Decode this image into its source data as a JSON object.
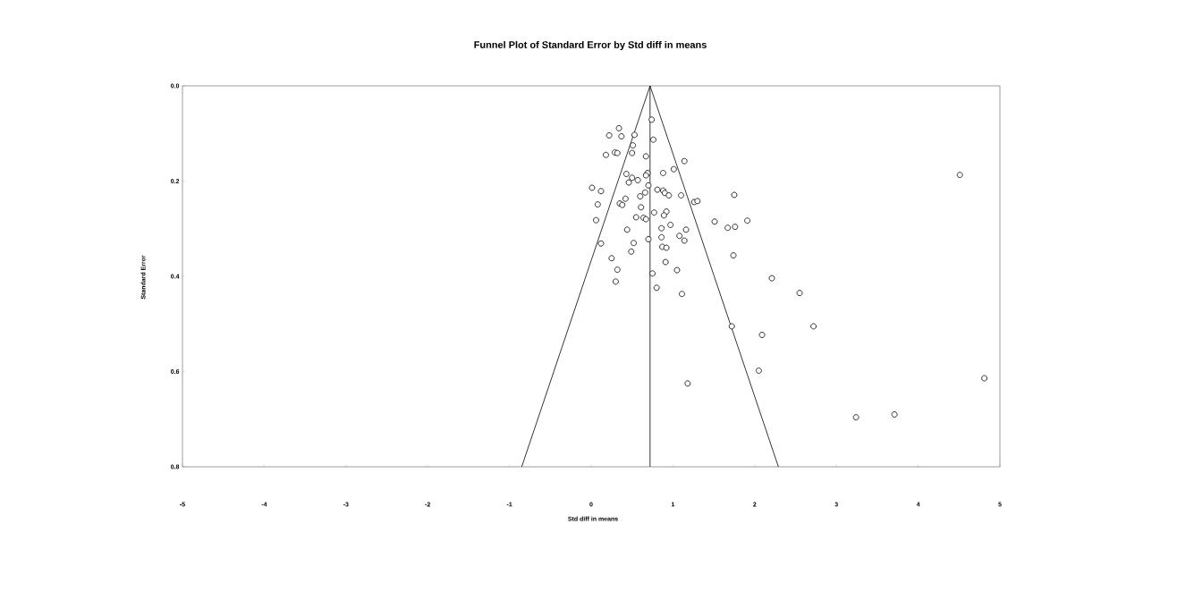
{
  "chart_data": {
    "type": "scatter",
    "title": "Funnel Plot of Standard Error by Std diff in means",
    "xlabel": "Std diff in means",
    "ylabel": "Standard Error",
    "xlim": [
      -5,
      5
    ],
    "xticks": [
      -5,
      -4,
      -3,
      -2,
      -1,
      0,
      1,
      2,
      3,
      4,
      5
    ],
    "ylim": [
      0.8,
      0
    ],
    "yticks": [
      {
        "value": 0,
        "label": "0.0"
      },
      0.2,
      0.4,
      0.6,
      0.8
    ],
    "marker": "circle",
    "series": [
      {
        "color": "#000000",
        "x": [
          0.74,
          0.34,
          0.22,
          0.37,
          0.53,
          0.76,
          0.51,
          0.29,
          0.32,
          0.18,
          0.5,
          0.67,
          1.14,
          1.01,
          0.88,
          0.43,
          0.69,
          0.67,
          0.5,
          0.57,
          0.46,
          0.7,
          0.01,
          0.12,
          0.81,
          0.88,
          0.9,
          0.95,
          0.66,
          0.6,
          1.1,
          1.75,
          0.42,
          0.35,
          0.38,
          0.08,
          1.26,
          1.3,
          0.61,
          0.77,
          0.92,
          0.89,
          0.06,
          0.55,
          0.64,
          0.67,
          1.51,
          1.91,
          1.67,
          1.76,
          0.97,
          0.44,
          0.86,
          1.16,
          0.12,
          0.52,
          0.7,
          0.86,
          1.08,
          1.14,
          0.49,
          0.87,
          0.92,
          1.74,
          0.25,
          0.91,
          0.32,
          1.05,
          0.75,
          0.3,
          2.21,
          0.8,
          1.11,
          1.72,
          2.09,
          2.05,
          1.18,
          4.51,
          2.55,
          2.72,
          4.81,
          3.24,
          3.71
        ],
        "values": [
          0.071,
          0.089,
          0.104,
          0.106,
          0.103,
          0.113,
          0.125,
          0.14,
          0.141,
          0.145,
          0.141,
          0.148,
          0.158,
          0.175,
          0.183,
          0.185,
          0.183,
          0.188,
          0.193,
          0.198,
          0.203,
          0.209,
          0.214,
          0.221,
          0.218,
          0.22,
          0.225,
          0.23,
          0.224,
          0.232,
          0.23,
          0.229,
          0.237,
          0.247,
          0.25,
          0.249,
          0.244,
          0.242,
          0.255,
          0.266,
          0.264,
          0.272,
          0.282,
          0.276,
          0.277,
          0.28,
          0.285,
          0.283,
          0.298,
          0.296,
          0.292,
          0.302,
          0.299,
          0.302,
          0.331,
          0.33,
          0.322,
          0.318,
          0.315,
          0.325,
          0.348,
          0.338,
          0.34,
          0.356,
          0.362,
          0.37,
          0.386,
          0.387,
          0.394,
          0.411,
          0.404,
          0.424,
          0.437,
          0.505,
          0.523,
          0.598,
          0.625,
          0.187,
          0.435,
          0.505,
          0.614,
          0.696,
          0.69
        ]
      },
      {
        "type": "line",
        "marker": "none",
        "color": "#000000",
        "x": [
          -0.85,
          0.72
        ],
        "values": [
          0.8,
          0
        ]
      },
      {
        "type": "line",
        "marker": "none",
        "color": "#000000",
        "x": [
          0.72,
          2.29
        ],
        "values": [
          0,
          0.8
        ]
      },
      {
        "type": "line",
        "marker": "none",
        "color": "#000000",
        "x": [
          0.72,
          0.72
        ],
        "values": [
          0,
          0.8
        ]
      }
    ]
  }
}
